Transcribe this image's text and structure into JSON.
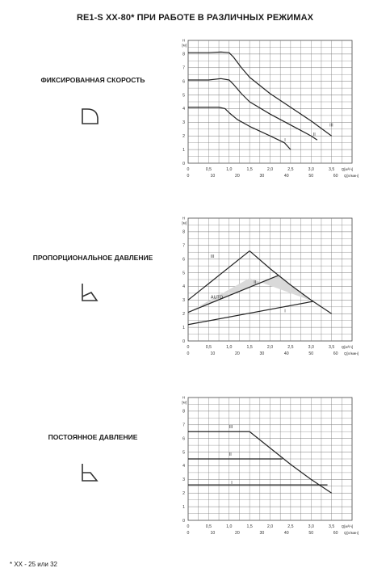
{
  "title": "RE1-S  XX-80* ПРИ РАБОТЕ В РАЗЛИЧНЫХ РЕЖИМАХ",
  "footnote": "* XX - 25 или 32",
  "modes": [
    {
      "label": "ФИКСИРОВАННАЯ СКОРОСТЬ",
      "icon": "fixed-speed-icon"
    },
    {
      "label": "ПРОПОРЦИОНАЛЬНОЕ ДАВЛЕНИЕ",
      "icon": "proportional-pressure-icon"
    },
    {
      "label": "ПОСТОЯННОЕ ДАВЛЕНИЕ",
      "icon": "constant-pressure-icon"
    }
  ],
  "axes": {
    "y_unit_top": "H",
    "y_unit_bottom": "[м]",
    "y_ticks": [
      0,
      1,
      2,
      3,
      4,
      5,
      6,
      7,
      8
    ],
    "x1_ticks": [
      "0",
      "0,5",
      "1,0",
      "1,5",
      "2,0",
      "2,5",
      "3,0",
      "3,5"
    ],
    "x1_values": [
      0,
      0.5,
      1.0,
      1.5,
      2.0,
      2.5,
      3.0,
      3.5
    ],
    "x1_unit": "Q[м³/ч]",
    "x2_ticks": [
      "0",
      "10",
      "20",
      "30",
      "40",
      "50",
      "60"
    ],
    "x2_values": [
      0,
      10,
      20,
      30,
      40,
      50,
      60
    ],
    "x2_unit": "Q[л/мин]"
  },
  "chart_data": [
    {
      "type": "line",
      "xlabel": "Q[м³/ч]",
      "ylabel": "H [м]",
      "xlim": [
        0,
        4.0
      ],
      "ylim": [
        0,
        9
      ],
      "grid": true,
      "series": [
        {
          "name": "III",
          "x": [
            0,
            0.5,
            0.8,
            1.0,
            1.1,
            1.3,
            1.5,
            2.0,
            2.5,
            3.0,
            3.5
          ],
          "y": [
            8.1,
            8.1,
            8.15,
            8.1,
            7.8,
            7.0,
            6.3,
            5.1,
            4.1,
            3.1,
            2.0
          ]
        },
        {
          "name": "II",
          "x": [
            0,
            0.5,
            0.8,
            1.0,
            1.1,
            1.3,
            1.5,
            2.0,
            2.5,
            3.0,
            3.15
          ],
          "y": [
            6.1,
            6.1,
            6.2,
            6.1,
            5.8,
            5.1,
            4.5,
            3.6,
            2.8,
            2.0,
            1.7
          ]
        },
        {
          "name": "I",
          "x": [
            0,
            0.5,
            0.75,
            0.9,
            1.0,
            1.2,
            1.5,
            2.0,
            2.35,
            2.5
          ],
          "y": [
            4.1,
            4.1,
            4.1,
            4.0,
            3.7,
            3.2,
            2.7,
            2.0,
            1.5,
            1.0
          ]
        }
      ]
    },
    {
      "type": "line",
      "xlabel": "Q[м³/ч]",
      "ylabel": "H [м]",
      "xlim": [
        0,
        4.0
      ],
      "ylim": [
        0,
        9
      ],
      "grid": true,
      "area_label": "AUTO",
      "auto_area": {
        "x": [
          0,
          1.5,
          3.05,
          2.2,
          0
        ],
        "y": [
          2.1,
          4.6,
          2.9,
          4.8,
          2.1
        ]
      },
      "max_curve": {
        "x": [
          1.5,
          2.0,
          2.5,
          3.0,
          3.5
        ],
        "y": [
          6.6,
          5.3,
          4.1,
          3.0,
          2.0
        ]
      },
      "series": [
        {
          "name": "III",
          "x": [
            0,
            1.5
          ],
          "y": [
            3.0,
            6.6
          ]
        },
        {
          "name": "II",
          "x": [
            0,
            2.2
          ],
          "y": [
            2.1,
            4.8
          ]
        },
        {
          "name": "I",
          "x": [
            0,
            3.05
          ],
          "y": [
            1.2,
            2.9
          ]
        }
      ]
    },
    {
      "type": "line",
      "xlabel": "Q[м³/ч]",
      "ylabel": "H [м]",
      "xlim": [
        0,
        4.0
      ],
      "ylim": [
        0,
        9
      ],
      "grid": true,
      "series": [
        {
          "name": "III",
          "x": [
            0,
            1.5,
            2.0,
            2.5,
            3.0,
            3.5
          ],
          "y": [
            6.5,
            6.5,
            5.3,
            4.1,
            3.0,
            2.0
          ]
        },
        {
          "name": "II",
          "x": [
            0,
            2.3
          ],
          "y": [
            4.5,
            4.5
          ]
        },
        {
          "name": "I",
          "x": [
            0,
            3.4
          ],
          "y": [
            2.6,
            2.6
          ]
        }
      ]
    }
  ]
}
